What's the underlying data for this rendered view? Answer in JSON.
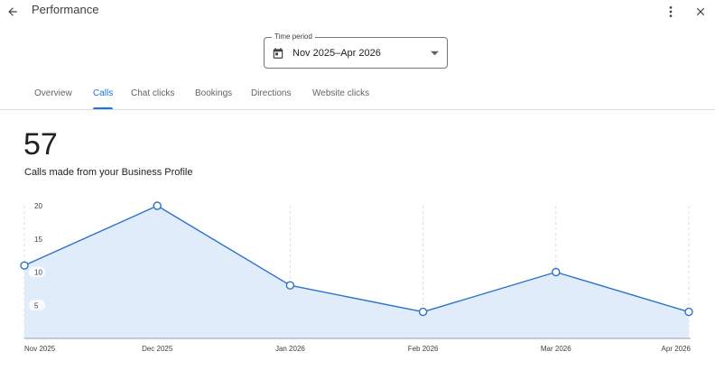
{
  "header": {
    "title": "Performance",
    "back_icon": "arrow-back-icon",
    "more_icon": "more-vert-icon",
    "close_icon": "close-icon"
  },
  "time_period": {
    "label": "Time period",
    "value": "Nov 2025–Apr 2026",
    "icon": "calendar-icon",
    "dropdown_icon": "caret-down-icon"
  },
  "tabs": [
    {
      "label": "Overview",
      "active": false
    },
    {
      "label": "Calls",
      "active": true
    },
    {
      "label": "Chat clicks",
      "active": false
    },
    {
      "label": "Bookings",
      "active": false
    },
    {
      "label": "Directions",
      "active": false
    },
    {
      "label": "Website clicks",
      "active": false
    }
  ],
  "summary": {
    "total": "57",
    "caption": "Calls made from your Business Profile"
  },
  "colors": {
    "accent": "#1a73e8",
    "line": "#2b72c9",
    "area_fill": "#e1ecfb"
  },
  "chart_data": {
    "type": "area",
    "categories": [
      "Nov 2025",
      "Dec 2025",
      "Jan 2026",
      "Feb 2026",
      "Mar 2026",
      "Apr 2026"
    ],
    "series": [
      {
        "values": [
          11,
          20,
          8,
          4,
          10,
          4
        ]
      }
    ],
    "y_ticks": [
      "5",
      "10",
      "15",
      "20"
    ],
    "ylim": [
      0,
      20
    ],
    "grid": "vertical dashed",
    "legend": "none"
  }
}
